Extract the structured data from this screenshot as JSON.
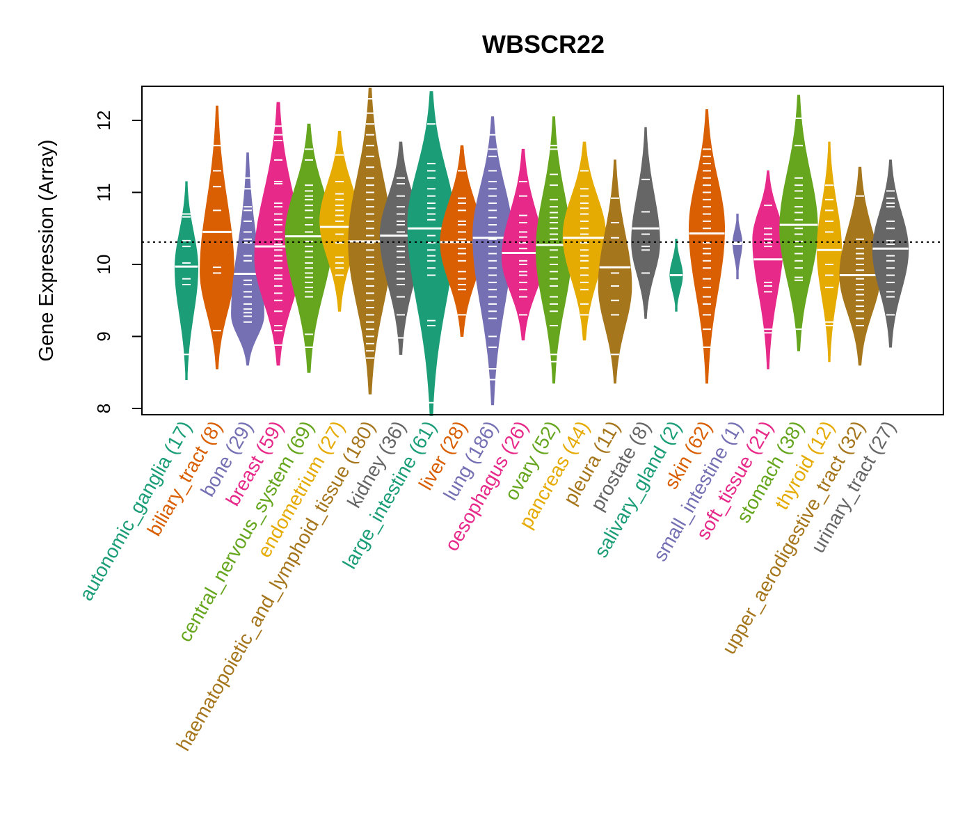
{
  "chart_data": {
    "type": "violin",
    "title": "WBSCR22",
    "xlabel": "",
    "ylabel": "Gene Expression (Array)",
    "ylim": [
      7.95,
      12.5
    ],
    "yticks": [
      8,
      9,
      10,
      11,
      12
    ],
    "ytick_labels": [
      "8",
      "9",
      "10",
      "11",
      "12"
    ],
    "reference_line": {
      "value": 10.31,
      "style": "dotted",
      "color": "#000000"
    },
    "grid": false,
    "legend": "none",
    "categories": [
      {
        "name": "autonomic_ganglia",
        "n": 17,
        "label": "autonomic_ganglia (17)",
        "color": "#1B9E77",
        "min": 8.4,
        "max": 11.15,
        "median": 9.97,
        "mode": 9.95,
        "spread": 0.35,
        "points": [
          8.75,
          9.72,
          9.8,
          9.97,
          10.02,
          10.25,
          10.33,
          10.66,
          10.7
        ]
      },
      {
        "name": "biliary_tract",
        "n": 8,
        "label": "biliary_tract (8)",
        "color": "#D95F02",
        "min": 8.55,
        "max": 12.2,
        "median": 10.45,
        "mode": 9.9,
        "spread": 0.6,
        "points": [
          9.08,
          9.88,
          9.96,
          10.75,
          11.08,
          11.3,
          11.65
        ]
      },
      {
        "name": "bone",
        "n": 29,
        "label": "bone (29)",
        "color": "#7570B3",
        "min": 8.6,
        "max": 11.55,
        "median": 9.87,
        "mode": 9.3,
        "spread": 0.45,
        "points": [
          9.2,
          9.28,
          9.33,
          9.38,
          9.45,
          9.55,
          9.62,
          9.72,
          9.78,
          10.05,
          10.12,
          10.3,
          10.35,
          10.45,
          10.6,
          10.75,
          10.8,
          11.05,
          11.2
        ]
      },
      {
        "name": "breast",
        "n": 59,
        "label": "breast (59)",
        "color": "#E7298A",
        "min": 8.6,
        "max": 12.25,
        "median": 10.25,
        "mode": 10.1,
        "spread": 0.6,
        "points": [
          8.88,
          9.08,
          9.15,
          9.35,
          9.5,
          9.6,
          9.7,
          9.8,
          9.85,
          9.95,
          10.05,
          10.12,
          10.2,
          10.28,
          10.35,
          10.45,
          10.55,
          10.62,
          10.7,
          10.8,
          10.85,
          11.12,
          11.15,
          11.45,
          11.72,
          11.8,
          11.92
        ]
      },
      {
        "name": "central_nervous_system",
        "n": 69,
        "label": "central_nervous_system (69)",
        "color": "#66A61E",
        "min": 8.5,
        "max": 11.95,
        "median": 10.39,
        "mode": 10.4,
        "spread": 0.6,
        "points": [
          8.85,
          9.03,
          9.55,
          9.62,
          9.68,
          9.75,
          9.82,
          9.88,
          9.95,
          10.02,
          10.1,
          10.18,
          10.25,
          10.32,
          10.45,
          10.55,
          10.65,
          10.75,
          10.82,
          10.9,
          10.95,
          11.02,
          11.1,
          11.45,
          11.6
        ]
      },
      {
        "name": "endometrium",
        "n": 27,
        "label": "endometrium (27)",
        "color": "#E6AB02",
        "min": 9.35,
        "max": 11.85,
        "median": 10.52,
        "mode": 10.6,
        "spread": 0.55,
        "points": [
          9.85,
          9.95,
          10.02,
          10.1,
          10.3,
          10.42,
          10.52,
          10.6,
          10.68,
          10.75,
          10.82,
          10.9,
          10.98,
          11.15,
          11.52
        ]
      },
      {
        "name": "haematopoietic_and_lymphoid_tissue",
        "n": 180,
        "label": "haematopoietic_and_lymphoid_tissue (180)",
        "color": "#A6761D",
        "min": 8.2,
        "max": 12.45,
        "median": 10.32,
        "mode": 10.3,
        "spread": 0.55,
        "points": [
          8.7,
          8.8,
          8.9,
          9.0,
          9.1,
          9.2,
          9.3,
          9.4,
          9.5,
          9.6,
          9.7,
          9.8,
          9.9,
          10.0,
          10.1,
          10.2,
          10.3,
          10.4,
          10.5,
          10.6,
          10.7,
          10.8,
          10.9,
          11.0,
          11.1,
          11.2,
          11.35,
          11.5,
          11.65,
          11.8,
          11.95,
          12.1,
          12.3
        ]
      },
      {
        "name": "kidney",
        "n": 36,
        "label": "kidney (36)",
        "color": "#666666",
        "min": 8.75,
        "max": 11.7,
        "median": 10.4,
        "mode": 10.4,
        "spread": 0.55,
        "points": [
          8.98,
          9.3,
          9.55,
          9.72,
          9.8,
          9.9,
          10.0,
          10.1,
          10.18,
          10.25,
          10.45,
          10.55,
          10.6,
          10.7,
          10.8,
          10.95,
          11.12,
          11.2
        ]
      },
      {
        "name": "large_intestine",
        "n": 61,
        "label": "large_intestine (61)",
        "color": "#1B9E77",
        "min": 7.9,
        "max": 12.4,
        "median": 10.5,
        "mode": 10.55,
        "spread": 0.6,
        "points": [
          8.08,
          9.15,
          9.22,
          9.85,
          9.95,
          10.05,
          10.12,
          10.2,
          10.3,
          10.4,
          10.5,
          10.62,
          10.7,
          10.78,
          10.85,
          10.95,
          11.05,
          11.2,
          11.3,
          11.4,
          11.95
        ]
      },
      {
        "name": "liver",
        "n": 28,
        "label": "liver (28)",
        "color": "#D95F02",
        "min": 9.0,
        "max": 11.65,
        "median": 10.31,
        "mode": 10.3,
        "spread": 0.6,
        "points": [
          9.3,
          9.65,
          9.72,
          9.8,
          9.9,
          10.05,
          10.15,
          10.22,
          10.35,
          10.45,
          10.55,
          10.6,
          10.75,
          10.85,
          10.92,
          11.3
        ]
      },
      {
        "name": "lung",
        "n": 186,
        "label": "lung (186)",
        "color": "#7570B3",
        "min": 8.05,
        "max": 12.05,
        "median": 10.37,
        "mode": 10.4,
        "spread": 0.5,
        "points": [
          8.4,
          8.55,
          8.85,
          9.0,
          9.25,
          9.35,
          9.45,
          9.55,
          9.65,
          9.75,
          9.85,
          9.95,
          10.05,
          10.15,
          10.25,
          10.35,
          10.45,
          10.55,
          10.65,
          10.75,
          10.85,
          10.95,
          11.05,
          11.15,
          11.3,
          11.5,
          11.6,
          11.8
        ]
      },
      {
        "name": "oesophagus",
        "n": 26,
        "label": "oesophagus (26)",
        "color": "#E7298A",
        "min": 8.95,
        "max": 11.6,
        "median": 10.16,
        "mode": 10.1,
        "spread": 0.6,
        "points": [
          9.3,
          9.55,
          9.65,
          9.75,
          9.85,
          9.9,
          10.0,
          10.05,
          10.22,
          10.3,
          10.38,
          10.45,
          10.58,
          10.68,
          10.95,
          11.15
        ]
      },
      {
        "name": "ovary",
        "n": 52,
        "label": "ovary (52)",
        "color": "#66A61E",
        "min": 8.35,
        "max": 12.05,
        "median": 10.27,
        "mode": 10.2,
        "spread": 0.45,
        "points": [
          8.65,
          8.75,
          9.15,
          9.35,
          9.45,
          9.55,
          9.7,
          9.8,
          9.9,
          10.0,
          10.1,
          10.2,
          10.35,
          10.42,
          10.5,
          10.58,
          10.65,
          10.72,
          10.8,
          10.9,
          11.1,
          11.25,
          11.6,
          11.65
        ]
      },
      {
        "name": "pancreas",
        "n": 44,
        "label": "pancreas (44)",
        "color": "#E6AB02",
        "min": 8.95,
        "max": 11.7,
        "median": 10.37,
        "mode": 10.4,
        "spread": 0.55,
        "points": [
          9.3,
          9.45,
          9.65,
          9.75,
          9.85,
          9.95,
          10.05,
          10.12,
          10.2,
          10.3,
          10.42,
          10.5,
          10.6,
          10.7,
          10.78,
          10.85,
          10.95,
          11.05,
          11.3
        ]
      },
      {
        "name": "pleura",
        "n": 11,
        "label": "pleura (11)",
        "color": "#A6761D",
        "min": 8.35,
        "max": 11.45,
        "median": 9.96,
        "mode": 9.7,
        "spread": 0.55,
        "points": [
          8.75,
          9.3,
          9.5,
          9.7,
          9.88,
          10.37,
          10.58,
          10.92
        ]
      },
      {
        "name": "prostate",
        "n": 8,
        "label": "prostate (8)",
        "color": "#666666",
        "min": 9.25,
        "max": 11.9,
        "median": 10.5,
        "mode": 10.3,
        "spread": 0.5,
        "points": [
          9.88,
          10.2,
          10.25,
          10.42,
          10.73,
          11.18
        ]
      },
      {
        "name": "salivary_gland",
        "n": 2,
        "label": "salivary_gland (2)",
        "color": "#1B9E77",
        "min": 9.35,
        "max": 10.35,
        "median": 9.85,
        "mode": 9.85,
        "spread": 0.3,
        "points": [
          9.85
        ]
      },
      {
        "name": "skin",
        "n": 62,
        "label": "skin (62)",
        "color": "#D95F02",
        "min": 8.35,
        "max": 12.15,
        "median": 10.43,
        "mode": 10.5,
        "spread": 0.45,
        "points": [
          8.85,
          9.1,
          9.3,
          9.45,
          9.55,
          9.68,
          9.8,
          9.95,
          10.05,
          10.15,
          10.22,
          10.3,
          10.5,
          10.6,
          10.7,
          10.8,
          10.9,
          11.0,
          11.1,
          11.2,
          11.3,
          11.4,
          11.5,
          11.6
        ]
      },
      {
        "name": "small_intestine",
        "n": 1,
        "label": "small_intestine (1)",
        "color": "#7570B3",
        "min": 9.8,
        "max": 10.7,
        "median": 10.3,
        "mode": 10.3,
        "spread": 0.25,
        "points": [
          10.28
        ]
      },
      {
        "name": "soft_tissue",
        "n": 21,
        "label": "soft_tissue (21)",
        "color": "#E7298A",
        "min": 8.55,
        "max": 11.3,
        "median": 10.07,
        "mode": 10.35,
        "spread": 0.45,
        "points": [
          9.05,
          9.1,
          9.62,
          9.7,
          9.75,
          10.25,
          10.3,
          10.35,
          10.42,
          10.5,
          10.82
        ]
      },
      {
        "name": "stomach",
        "n": 38,
        "label": "stomach (38)",
        "color": "#66A61E",
        "min": 8.8,
        "max": 12.35,
        "median": 10.55,
        "mode": 10.5,
        "spread": 0.5,
        "points": [
          9.1,
          9.78,
          9.82,
          9.95,
          10.05,
          10.15,
          10.25,
          10.32,
          10.42,
          10.5,
          10.62,
          10.72,
          10.8,
          10.92,
          11.02,
          11.1,
          11.2,
          11.65,
          12.03
        ]
      },
      {
        "name": "thyroid",
        "n": 12,
        "label": "thyroid (12)",
        "color": "#E6AB02",
        "min": 8.65,
        "max": 11.7,
        "median": 10.2,
        "mode": 10.2,
        "spread": 0.4,
        "points": [
          9.15,
          9.2,
          9.68,
          9.85,
          10.0,
          10.45,
          10.6,
          10.75,
          10.9,
          11.1
        ]
      },
      {
        "name": "upper_aerodigestive_tract",
        "n": 32,
        "label": "upper_aerodigestive_tract (32)",
        "color": "#A6761D",
        "min": 8.6,
        "max": 11.35,
        "median": 9.85,
        "mode": 9.85,
        "spread": 0.55,
        "points": [
          9.15,
          9.25,
          9.35,
          9.42,
          9.5,
          9.58,
          9.65,
          9.72,
          9.8,
          9.92,
          10.0,
          10.08,
          10.15,
          10.22,
          10.35,
          10.95
        ]
      },
      {
        "name": "urinary_tract",
        "n": 27,
        "label": "urinary_tract (27)",
        "color": "#666666",
        "min": 8.85,
        "max": 11.45,
        "median": 10.22,
        "mode": 10.2,
        "spread": 0.5,
        "points": [
          9.3,
          9.55,
          9.62,
          9.75,
          9.85,
          9.95,
          10.05,
          10.12,
          10.28,
          10.33,
          10.5,
          10.6,
          10.8,
          10.85,
          10.92,
          11.02
        ]
      }
    ]
  }
}
